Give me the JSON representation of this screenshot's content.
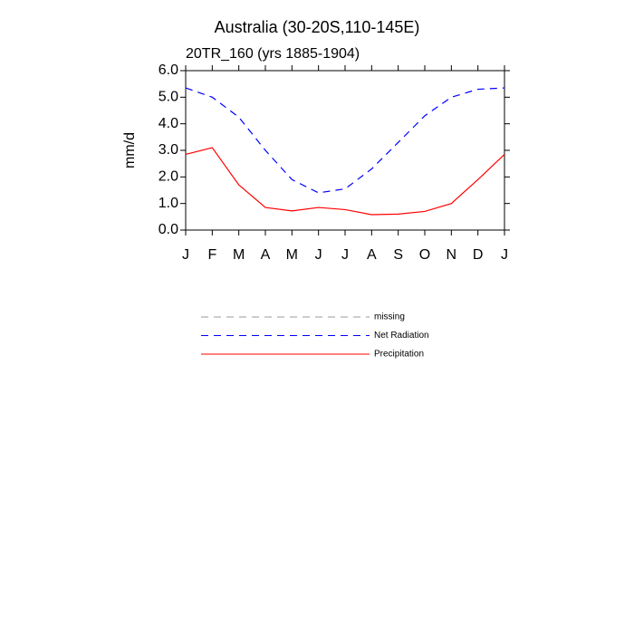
{
  "chart_data": {
    "type": "line",
    "title": "Australia (30-20S,110-145E)",
    "subtitle": "20TR_160 (yrs 1885-1904)",
    "y_label": "mm/d",
    "categories": [
      "J",
      "F",
      "M",
      "A",
      "M",
      "J",
      "J",
      "A",
      "S",
      "O",
      "N",
      "D",
      "J"
    ],
    "ylim": [
      0,
      6
    ],
    "yticks": [
      {
        "value": 0,
        "label": "0.0"
      },
      {
        "value": 1,
        "label": "1.0"
      },
      {
        "value": 2,
        "label": "2.0"
      },
      {
        "value": 3,
        "label": "3.0"
      },
      {
        "value": 4,
        "label": "4.0"
      },
      {
        "value": 5,
        "label": "5.0"
      },
      {
        "value": 6,
        "label": "6.0"
      }
    ],
    "series": [
      {
        "name": "missing",
        "color": "#999999",
        "linestyle": "dashed",
        "values": [
          null,
          null,
          null,
          null,
          null,
          null,
          null,
          null,
          null,
          null,
          null,
          null,
          null
        ]
      },
      {
        "name": "Net Radiation",
        "color": "#0000ff",
        "linestyle": "dashed",
        "values": [
          5.35,
          5.0,
          4.25,
          3.0,
          1.9,
          1.4,
          1.55,
          2.3,
          3.3,
          4.3,
          5.0,
          5.3,
          5.35
        ]
      },
      {
        "name": "Precipitation",
        "color": "#ff0000",
        "linestyle": "solid",
        "values": [
          2.85,
          3.1,
          1.7,
          0.85,
          0.72,
          0.85,
          0.77,
          0.58,
          0.6,
          0.7,
          1.0,
          1.9,
          2.85
        ]
      }
    ]
  }
}
